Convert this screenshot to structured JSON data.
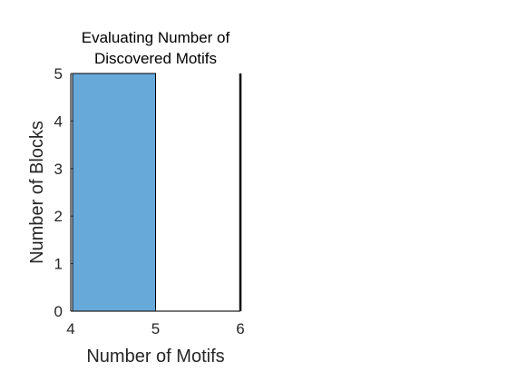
{
  "chart_data": {
    "type": "bar",
    "title": [
      "Evaluating Number of",
      "Discovered Motifs"
    ],
    "xlabel": "Number of Motifs",
    "ylabel": "Number of Blocks",
    "xlim": [
      4,
      6
    ],
    "ylim": [
      0,
      5
    ],
    "xticks": [
      4,
      5,
      6
    ],
    "yticks": [
      0,
      1,
      2,
      3,
      4,
      5
    ],
    "bins": [
      {
        "start": 4,
        "end": 5,
        "value": 5
      },
      {
        "start": 5,
        "end": 6,
        "value": 0
      }
    ],
    "bar_color": "#67a9d9",
    "grid": false
  }
}
